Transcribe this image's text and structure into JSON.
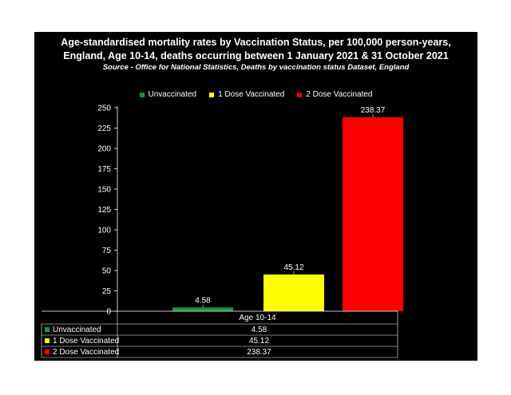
{
  "colors": {
    "unvaccinated": "#1a9641",
    "dose1": "#ffff00",
    "dose2": "#ff0000",
    "background": "#000000",
    "text": "#ffffff"
  },
  "chart_data": {
    "type": "bar",
    "title": "Age-standardised mortality rates by Vaccination Status, per 100,000 person-years,",
    "title_line2": "England, Age 10-14, deaths occurring between 1 January 2021 & 31 October 2021",
    "subtitle": "Source - Office for National Statistics, Deaths by vaccination status Dataset, England",
    "categories": [
      "Age 10-14"
    ],
    "series": [
      {
        "name": "Unvaccinated",
        "values": [
          4.58
        ],
        "color": "#1a9641"
      },
      {
        "name": "1 Dose Vaccinated",
        "values": [
          45.12
        ],
        "color": "#ffff00"
      },
      {
        "name": "2 Dose Vaccinated",
        "values": [
          238.37
        ],
        "color": "#ff0000"
      }
    ],
    "data_labels": [
      "4.58",
      "45.12",
      "238.37"
    ],
    "ylim": [
      0,
      250
    ],
    "yticks": [
      0,
      25,
      50,
      75,
      100,
      125,
      150,
      175,
      200,
      225,
      250
    ],
    "legend_position": "top",
    "grid": false,
    "data_table": true
  }
}
